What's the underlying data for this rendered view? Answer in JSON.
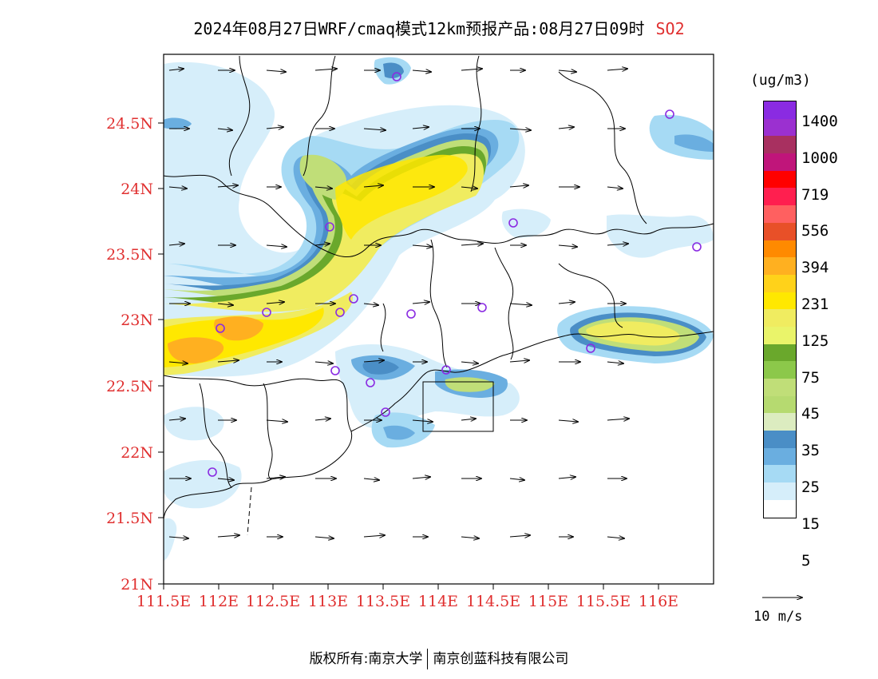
{
  "title": {
    "text": "2024年08月27日WRF/cmaq模式12km预报产品:08月27日09时",
    "species": "SO2"
  },
  "axes": {
    "lat_labels": [
      "24.5N",
      "24N",
      "23.5N",
      "23N",
      "22.5N",
      "22N",
      "21.5N",
      "21N"
    ],
    "lon_labels": [
      "111.5E",
      "112E",
      "112.5E",
      "113E",
      "113.5E",
      "114E",
      "114.5E",
      "115E",
      "115.5E",
      "116E"
    ],
    "label_color": "#e03030"
  },
  "colorbar": {
    "unit": "(ug/m3)",
    "levels": [
      "1400",
      "1000",
      "719",
      "556",
      "394",
      "231",
      "125",
      "75",
      "45",
      "35",
      "25",
      "15",
      "5"
    ],
    "colors_top_to_bottom": [
      "#8a2be2",
      "#9b30d0",
      "#a83060",
      "#c0157a",
      "#ff0000",
      "#ff1f4f",
      "#ff6060",
      "#e85028",
      "#ff8a00",
      "#ffb020",
      "#ffd21a",
      "#ffe800",
      "#f0ec60",
      "#eaf46a",
      "#6aa82c",
      "#8cc84a",
      "#c0de78",
      "#b6da70",
      "#dcecc0",
      "#4a8ec6",
      "#6aaee0",
      "#a6daf4",
      "#d6eefa",
      "#ffffff"
    ]
  },
  "wind_key": {
    "label": "10 m/s"
  },
  "footer": {
    "left": "版权所有:南京大学",
    "right": "南京创蓝科技有限公司"
  },
  "colors": {
    "station_marker": "#8a2be2",
    "frame": "#000000"
  }
}
